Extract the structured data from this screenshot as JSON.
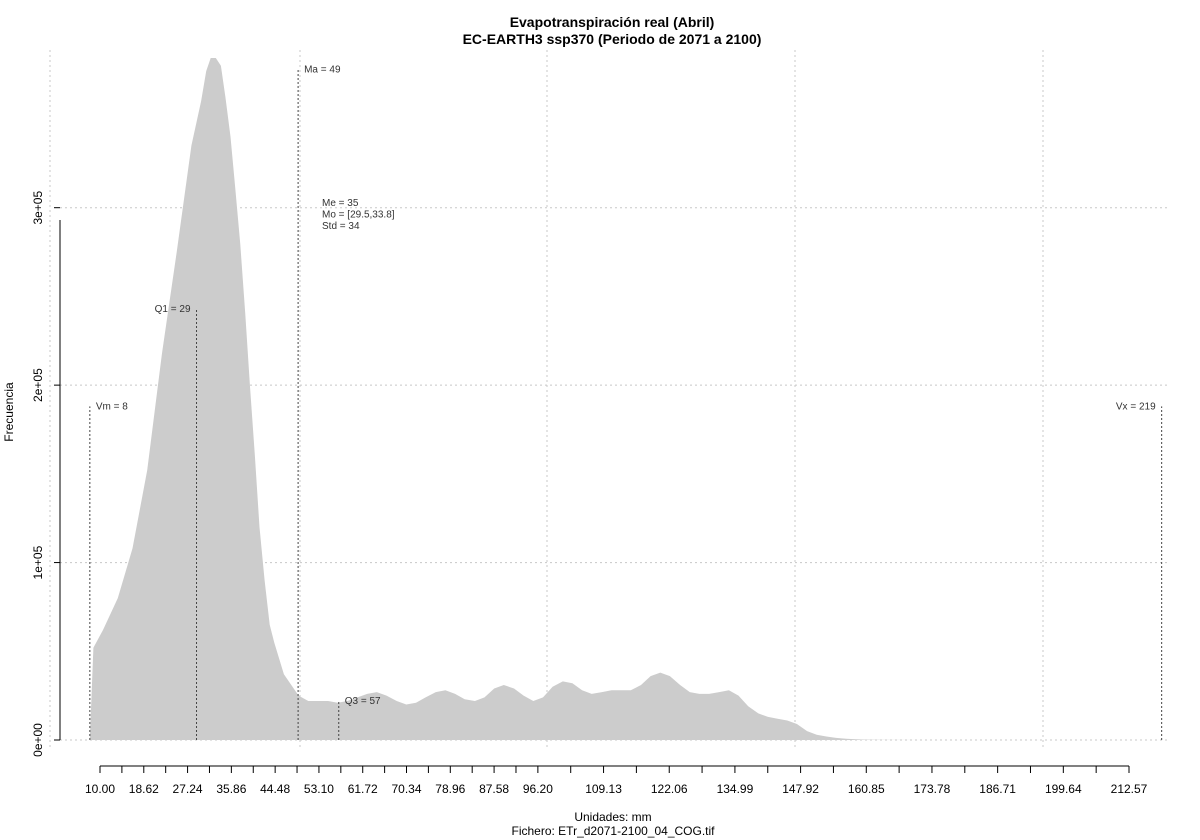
{
  "chart_data": {
    "type": "area",
    "title": "Evapotranspiración real (Abril)",
    "subtitle": "EC-EARTH3 ssp370 (Periodo de 2071 a 2100)",
    "xlabel": "Unidades: mm",
    "ylabel": "Frecuencia",
    "footer": "Fichero: ETr_d2071-2100_04_COG.tif",
    "xlim": [
      6.5,
      219
    ],
    "ylim": [
      0,
      375000
    ],
    "grid": true,
    "fill_color": "#cccccc",
    "x_ticks": [
      10.0,
      18.62,
      27.24,
      35.86,
      44.48,
      53.1,
      61.72,
      70.34,
      78.96,
      87.58,
      96.2,
      109.13,
      122.06,
      134.99,
      147.92,
      160.85,
      173.78,
      186.71,
      199.64,
      212.57
    ],
    "x_tick_labels": [
      "10.00",
      "18.62",
      "27.24",
      "35.86",
      "44.48",
      "53.10",
      "61.72",
      "70.34",
      "78.96",
      "87.58",
      "96.20",
      "109.13",
      "122.06",
      "134.99",
      "147.92",
      "160.85",
      "173.78",
      "186.71",
      "199.64",
      "212.57"
    ],
    "y_ticks": [
      0,
      100000,
      200000,
      300000
    ],
    "y_tick_labels": [
      "0e+00",
      "1e+05",
      "2e+05",
      "3e+05"
    ],
    "density": {
      "x": [
        8,
        8.7,
        10.6,
        13.5,
        16.4,
        19.3,
        22.2,
        25.1,
        28.0,
        29.9,
        30.9,
        31.8,
        32.8,
        33.8,
        34.7,
        35.7,
        36.6,
        37.6,
        38.6,
        39.5,
        40.5,
        41.4,
        42.4,
        43.4,
        44.3,
        46.2,
        49.1,
        51.0,
        53.0,
        54.9,
        56.8,
        58.7,
        60.7,
        62.6,
        64.5,
        66.4,
        68.4,
        70.3,
        72.2,
        74.1,
        76.1,
        78.0,
        79.9,
        81.8,
        83.8,
        85.7,
        87.6,
        89.5,
        91.5,
        93.4,
        95.3,
        97.2,
        99.1,
        101.1,
        103.0,
        104.9,
        106.8,
        108.8,
        110.7,
        112.6,
        114.5,
        116.5,
        118.4,
        120.3,
        122.2,
        124.2,
        126.1,
        128.0,
        129.9,
        131.9,
        133.8,
        135.7,
        137.6,
        139.6,
        141.5,
        143.4,
        145.3,
        147.2,
        149.2,
        151.1,
        153.0,
        154.9,
        156.9,
        158.8,
        160.7,
        164.6,
        172.3,
        180.0,
        191.6,
        203.1,
        214.6,
        218
      ],
      "y": [
        0,
        52000,
        62000,
        80000,
        108000,
        152000,
        218000,
        275000,
        335000,
        360000,
        377000,
        390000,
        390000,
        380000,
        362000,
        340000,
        312000,
        280000,
        240000,
        200000,
        160000,
        120000,
        90000,
        65000,
        55000,
        37000,
        25000,
        22000,
        22000,
        22000,
        21000,
        22000,
        24000,
        26000,
        27000,
        25000,
        22000,
        20000,
        21000,
        24000,
        27000,
        28000,
        26000,
        23000,
        22000,
        24000,
        29000,
        31000,
        29000,
        25000,
        22000,
        24000,
        30000,
        33000,
        32000,
        28000,
        26000,
        27000,
        28000,
        28000,
        28000,
        31000,
        36000,
        38000,
        36000,
        31000,
        27000,
        26000,
        26000,
        27000,
        28000,
        25000,
        19000,
        15000,
        13000,
        12000,
        11000,
        9000,
        5000,
        3000,
        2000,
        1200,
        700,
        400,
        200,
        50,
        0,
        0,
        0,
        0,
        0,
        0
      ]
    },
    "markers": [
      {
        "name": "Vm",
        "x": 8,
        "y_top": 188000,
        "label": "Vm = 8",
        "label_side": "right"
      },
      {
        "name": "Q1",
        "x": 29,
        "y_top": 243000,
        "label": "Q1 = 29",
        "label_side": "left"
      },
      {
        "name": "Ma",
        "x": 49,
        "y_top": 378000,
        "label": "Ma = 49",
        "label_side": "right"
      },
      {
        "name": "Q3",
        "x": 57,
        "y_top": 22000,
        "label": "Q3 = 57",
        "label_side": "right"
      },
      {
        "name": "Vx",
        "x": 219,
        "y_top": 188000,
        "label": "Vx = 219",
        "label_side": "left"
      }
    ],
    "stats": [
      "Me = 35",
      "Mo = [29.5,33.8]",
      "Std = 34"
    ]
  }
}
